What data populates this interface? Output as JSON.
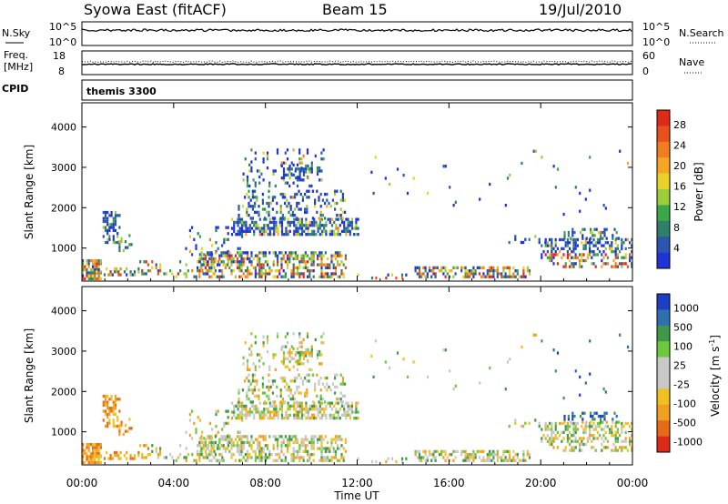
{
  "header": {
    "station": "Syowa East (fitACF)",
    "beam": "Beam 15",
    "date": "19/Jul/2010"
  },
  "nsky": {
    "label": "N.Sky",
    "tick_top": "10^5",
    "tick_bottom": "10^0",
    "right_label": "N.Search",
    "right_tick_top": "10^5",
    "right_tick_bottom": "10^0"
  },
  "freq": {
    "label_line1": "Freq.",
    "label_line2": "[MHz]",
    "tick_top": "18",
    "tick_bottom": "8",
    "right_label": "Nave",
    "right_tick_top": "60",
    "right_tick_bottom": "0"
  },
  "cpid": {
    "label": "CPID",
    "value": "themis 3300"
  },
  "chart_data": [
    {
      "type": "heatmap",
      "panel": "power",
      "ylabel": "Slant Range [km]",
      "ylim": [
        180,
        4600
      ],
      "yticks": [
        "1000",
        "2000",
        "3000",
        "4000"
      ],
      "colorbar_label": "Power [dB]",
      "colorbar_ticks": [
        "4",
        "8",
        "12",
        "16",
        "20",
        "24",
        "28"
      ],
      "colors": [
        "#1f34d8",
        "#2b55b0",
        "#2f7f6a",
        "#3aa84a",
        "#9ccc3a",
        "#e8d22a",
        "#f6a623",
        "#f07d1f",
        "#e8501c",
        "#e02a18"
      ]
    },
    {
      "type": "heatmap",
      "panel": "velocity",
      "ylabel": "Slant Range [km]",
      "ylim": [
        180,
        4600
      ],
      "yticks": [
        "1000",
        "2000",
        "3000",
        "4000"
      ],
      "colorbar_label": "Velocity [m s^-1]",
      "colorbar_ticks": [
        "1000",
        "500",
        "100",
        "25",
        "-25",
        "-100",
        "-500",
        "-1000"
      ],
      "colors": [
        "#1c3fc4",
        "#2f6fb0",
        "#3e9a4a",
        "#6cc83c",
        "#c8c8c8",
        "#c8c8c8",
        "#f0c020",
        "#f0a020",
        "#e86a18",
        "#e02a18"
      ]
    }
  ],
  "xaxis": {
    "label": "Time UT",
    "ticks": [
      "00:00",
      "04:00",
      "08:00",
      "12:00",
      "16:00",
      "20:00",
      "00:00"
    ]
  }
}
